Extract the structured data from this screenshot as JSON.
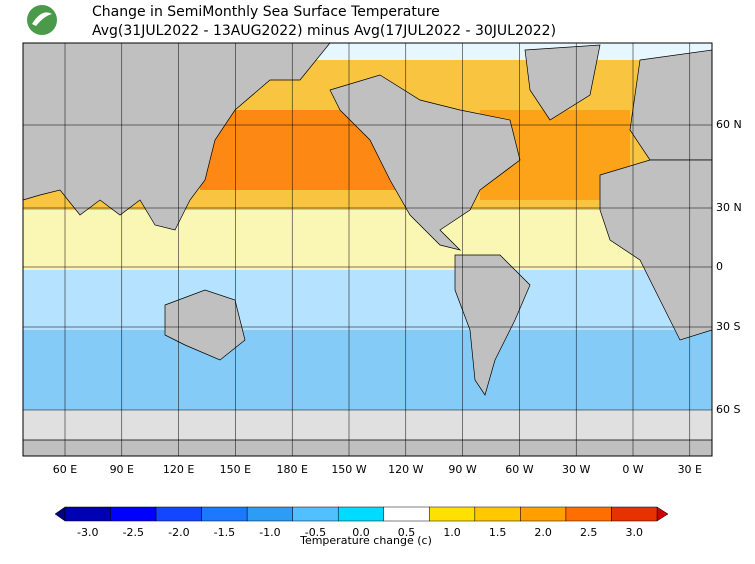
{
  "header": {
    "title": "Change in SemiMonthly Sea Surface Temperature",
    "subtitle": "Avg(31JUL2022 - 13AUG2022) minus Avg(17JUL2022 - 30JUL2022)"
  },
  "map": {
    "lon_labels": [
      "60 E",
      "90 E",
      "120 E",
      "150 E",
      "180 E",
      "150 W",
      "120 W",
      "90 W",
      "60 W",
      "30 W",
      "0 W",
      "30 E"
    ],
    "lat_labels": [
      "60 N",
      "30 N",
      "0",
      "30 S",
      "60 S"
    ]
  },
  "colorbar": {
    "label": "Temperature change  (c)",
    "ticks": [
      {
        "value": -3,
        "label": "-3.0"
      },
      {
        "value": -2.5,
        "label": "-2.5"
      },
      {
        "value": -2,
        "label": "-2.0"
      },
      {
        "value": -1.5,
        "label": "-1.5"
      },
      {
        "value": -1,
        "label": "-1.0"
      },
      {
        "value": -0.5,
        "label": "-0.5"
      },
      {
        "value": 0,
        "label": "0.0"
      },
      {
        "value": 0.5,
        "label": "0.5"
      },
      {
        "value": 1,
        "label": "1.0"
      },
      {
        "value": 1.5,
        "label": "1.5"
      },
      {
        "value": 2,
        "label": "2.0"
      },
      {
        "value": 2.5,
        "label": "2.5"
      },
      {
        "value": 3,
        "label": "3.0"
      }
    ],
    "colors": [
      "#0000b4",
      "#0000ff",
      "#1446ff",
      "#1e78ff",
      "#2c9cf5",
      "#50c0ff",
      "#00dcff",
      "#ffffff",
      "#ffe100",
      "#ffc800",
      "#ffa000",
      "#ff6e00",
      "#e63200"
    ],
    "low_color": "#000080",
    "high_color": "#c80000"
  }
}
